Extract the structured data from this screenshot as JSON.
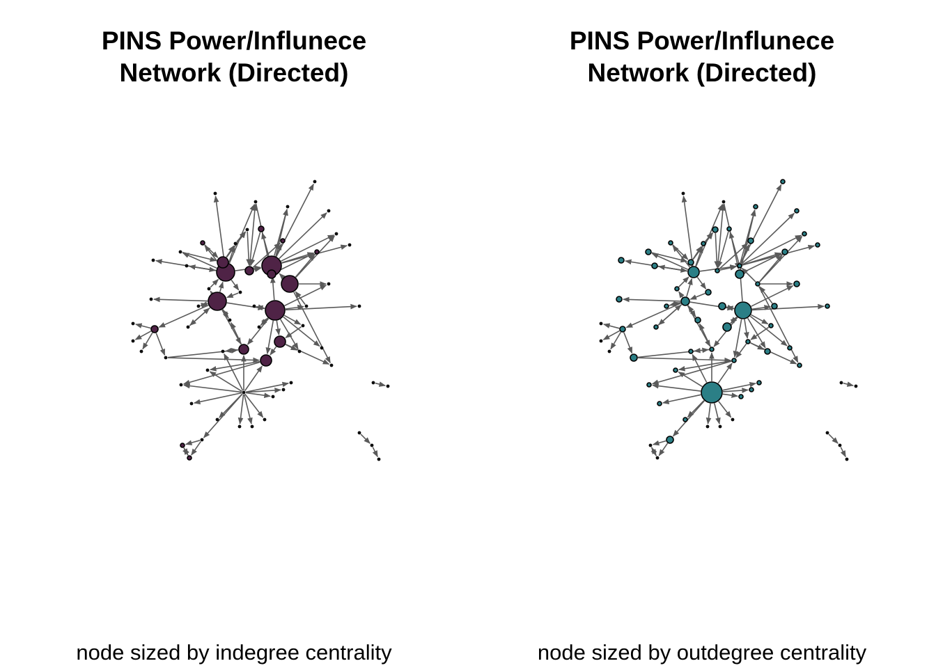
{
  "colors": {
    "indegree_node": "#4f2346",
    "outdegree_node": "#2b7f86",
    "edge": "#5a5a5a",
    "node_border": "#000000"
  },
  "panels": [
    {
      "title_line1": "PINS Power/Influnece",
      "title_line2": "Network (Directed)",
      "caption": "node sized by indegree centrality",
      "node_color": "#4f2346"
    },
    {
      "title_line1": "PINS Power/Influnece",
      "title_line2": "Network (Directed)",
      "caption": "node sized by outdegree centrality",
      "node_color": "#2b7f86"
    }
  ]
}
